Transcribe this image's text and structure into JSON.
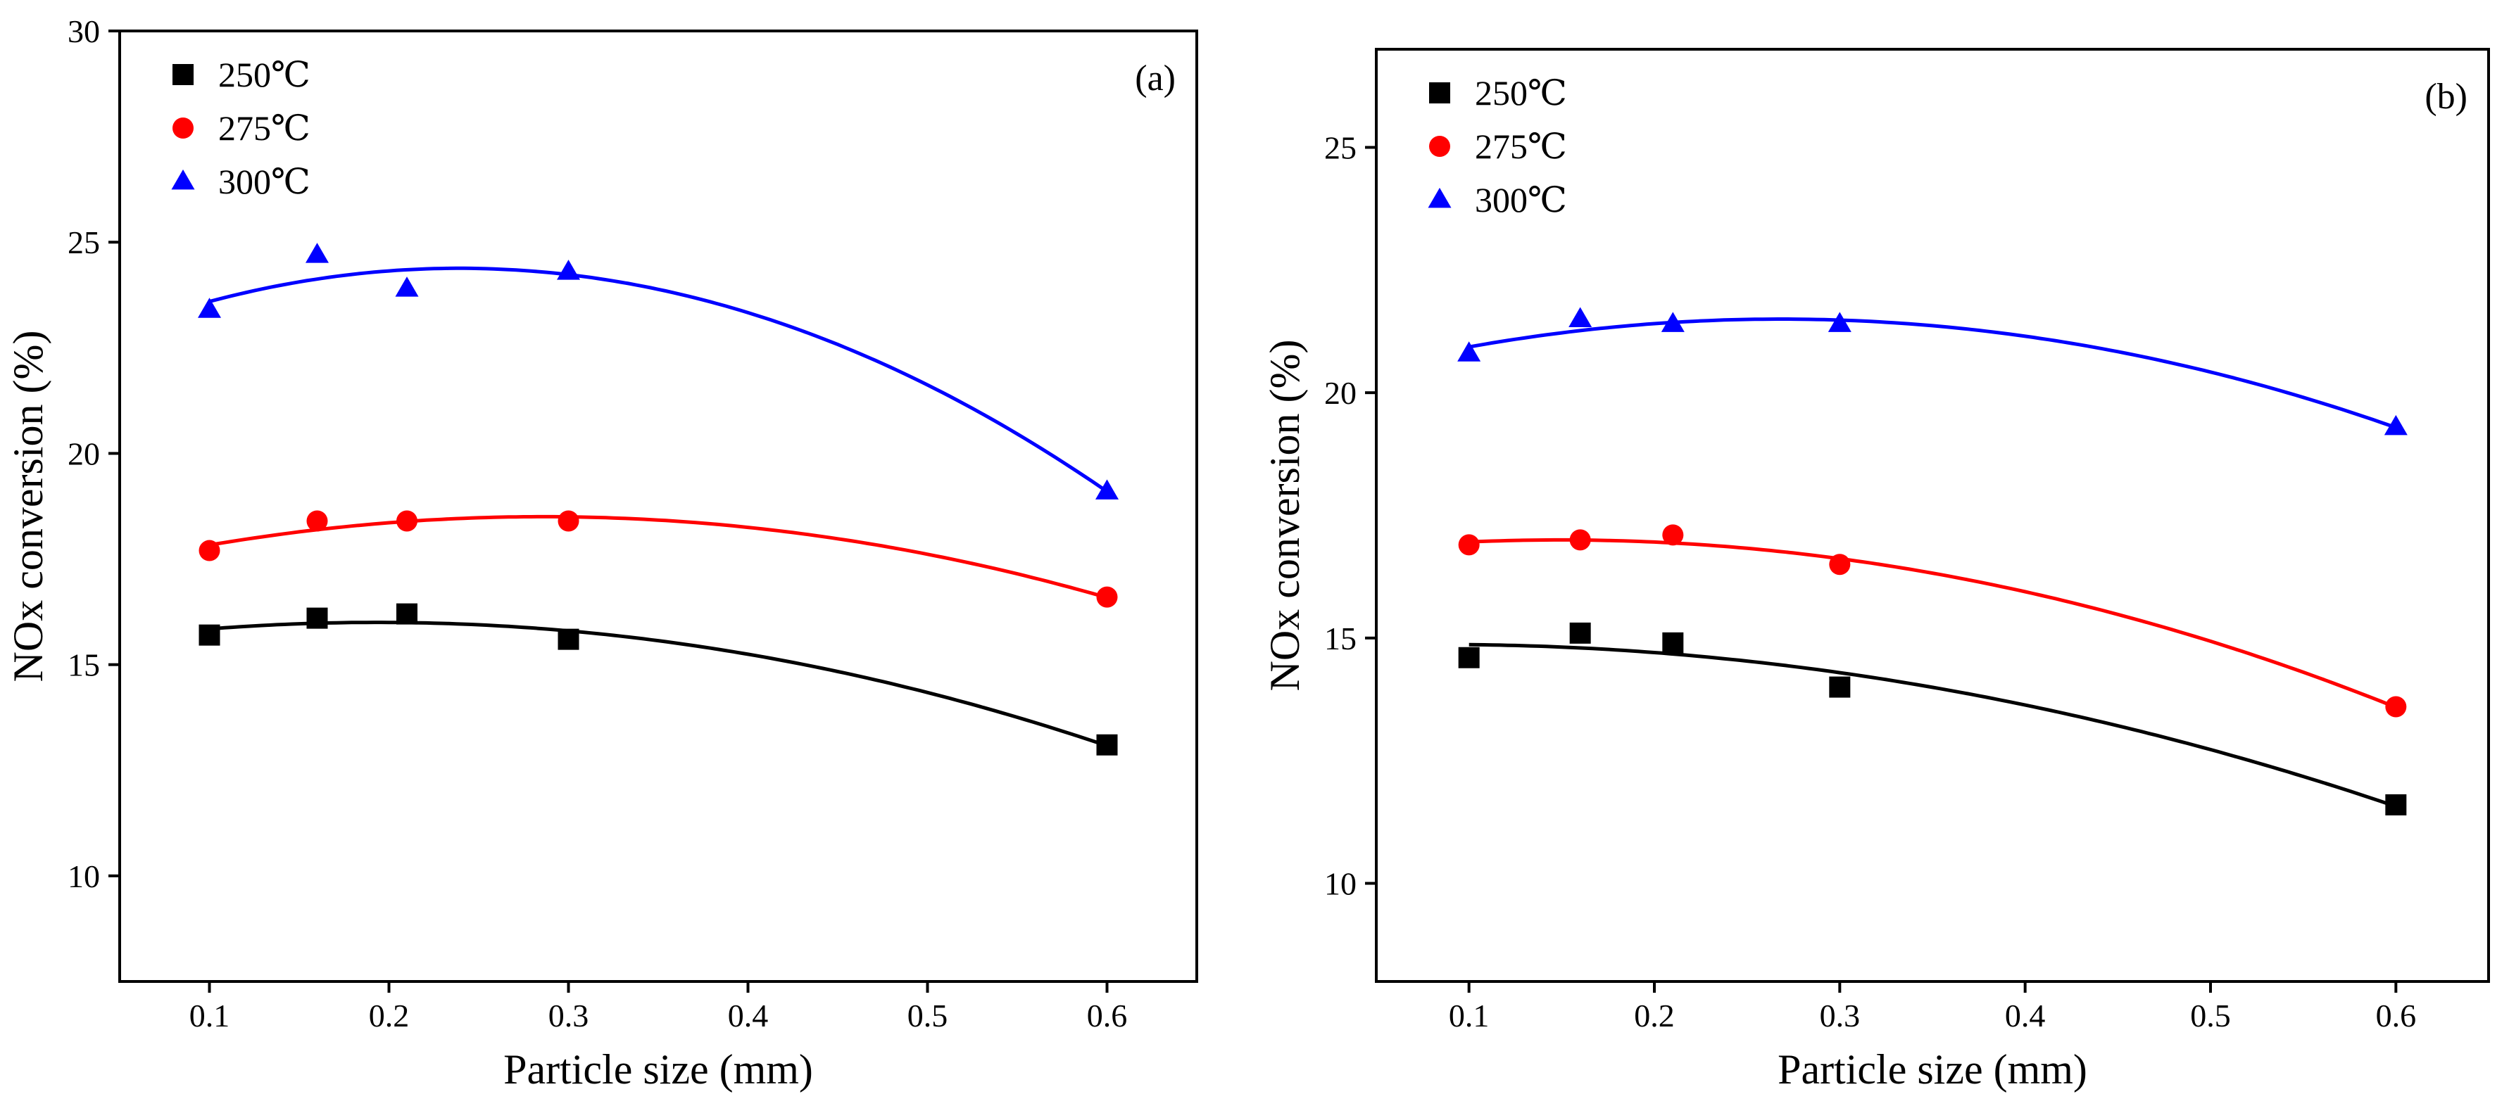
{
  "chart_data": [
    {
      "type": "scatter",
      "panel_label": "(a)",
      "xlabel": "Particle size (mm)",
      "ylabel": "NOx conversion (%)",
      "xlim": [
        0.05,
        0.65
      ],
      "ylim": [
        7.5,
        30
      ],
      "x_ticks": [
        0.1,
        0.2,
        0.3,
        0.4,
        0.5,
        0.6
      ],
      "x_tick_labels": [
        "0.1",
        "0.2",
        "0.3",
        "0.4",
        "0.5",
        "0.6"
      ],
      "y_ticks": [
        10,
        15,
        20,
        25,
        30
      ],
      "y_tick_labels": [
        "10",
        "15",
        "20",
        "25",
        "30"
      ],
      "legend_position": "top-left",
      "fit": "quadratic",
      "series": [
        {
          "name": "250℃",
          "marker": "square",
          "color": "#000000",
          "x": [
            0.1,
            0.16,
            0.21,
            0.3,
            0.6
          ],
          "y": [
            15.7,
            16.1,
            16.2,
            15.6,
            13.1
          ]
        },
        {
          "name": "275℃",
          "marker": "circle",
          "color": "#ff0000",
          "x": [
            0.1,
            0.16,
            0.21,
            0.3,
            0.6
          ],
          "y": [
            17.7,
            18.4,
            18.4,
            18.4,
            16.6
          ]
        },
        {
          "name": "300℃",
          "marker": "triangle",
          "color": "#0000ff",
          "x": [
            0.1,
            0.16,
            0.21,
            0.3,
            0.6
          ],
          "y": [
            23.4,
            24.7,
            23.9,
            24.3,
            19.1
          ]
        }
      ]
    },
    {
      "type": "scatter",
      "panel_label": "(b)",
      "xlabel": "Particle size (mm)",
      "ylabel": "NOx conversion (%)",
      "xlim": [
        0.05,
        0.65
      ],
      "ylim": [
        8,
        27
      ],
      "x_ticks": [
        0.1,
        0.2,
        0.3,
        0.4,
        0.5,
        0.6
      ],
      "x_tick_labels": [
        "0.1",
        "0.2",
        "0.3",
        "0.4",
        "0.5",
        "0.6"
      ],
      "y_ticks": [
        10,
        15,
        20,
        25
      ],
      "y_tick_labels": [
        "10",
        "15",
        "20",
        "25"
      ],
      "legend_position": "top-left",
      "fit": "quadratic",
      "series": [
        {
          "name": "250℃",
          "marker": "square",
          "color": "#000000",
          "x": [
            0.1,
            0.16,
            0.21,
            0.3,
            0.6
          ],
          "y": [
            14.6,
            15.1,
            14.9,
            14.0,
            11.6
          ]
        },
        {
          "name": "275℃",
          "marker": "circle",
          "color": "#ff0000",
          "x": [
            0.1,
            0.16,
            0.21,
            0.3,
            0.6
          ],
          "y": [
            16.9,
            17.0,
            17.1,
            16.5,
            13.6
          ]
        },
        {
          "name": "300℃",
          "marker": "triangle",
          "color": "#0000ff",
          "x": [
            0.1,
            0.16,
            0.21,
            0.3,
            0.6
          ],
          "y": [
            20.8,
            21.5,
            21.4,
            21.4,
            19.3
          ]
        }
      ]
    }
  ]
}
